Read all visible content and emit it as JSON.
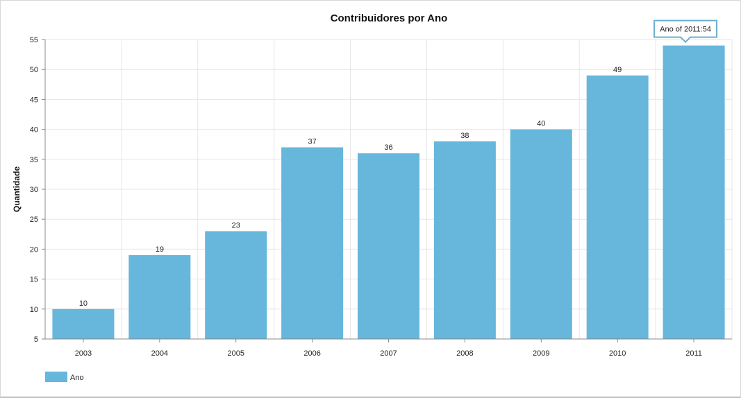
{
  "chart_data": {
    "type": "bar",
    "title": "Contribuidores por Ano",
    "xlabel": "",
    "ylabel": "Quantidade",
    "categories": [
      "2003",
      "2004",
      "2005",
      "2006",
      "2007",
      "2008",
      "2009",
      "2010",
      "2011"
    ],
    "series": [
      {
        "name": "Ano",
        "values": [
          10,
          19,
          23,
          37,
          36,
          38,
          40,
          49,
          54
        ],
        "color": "#67b6dc"
      }
    ],
    "ylim": [
      5,
      55
    ],
    "yticks": [
      "5",
      "10",
      "15",
      "20",
      "25",
      "30",
      "35",
      "40",
      "45",
      "50",
      "55"
    ],
    "data_labels": [
      "10",
      "19",
      "23",
      "37",
      "36",
      "38",
      "40",
      "49",
      ""
    ],
    "grid": true,
    "legend_position": "bottom-left",
    "tooltip": {
      "text": "Ano of 2011:54",
      "category": "2011",
      "value": 54
    }
  }
}
